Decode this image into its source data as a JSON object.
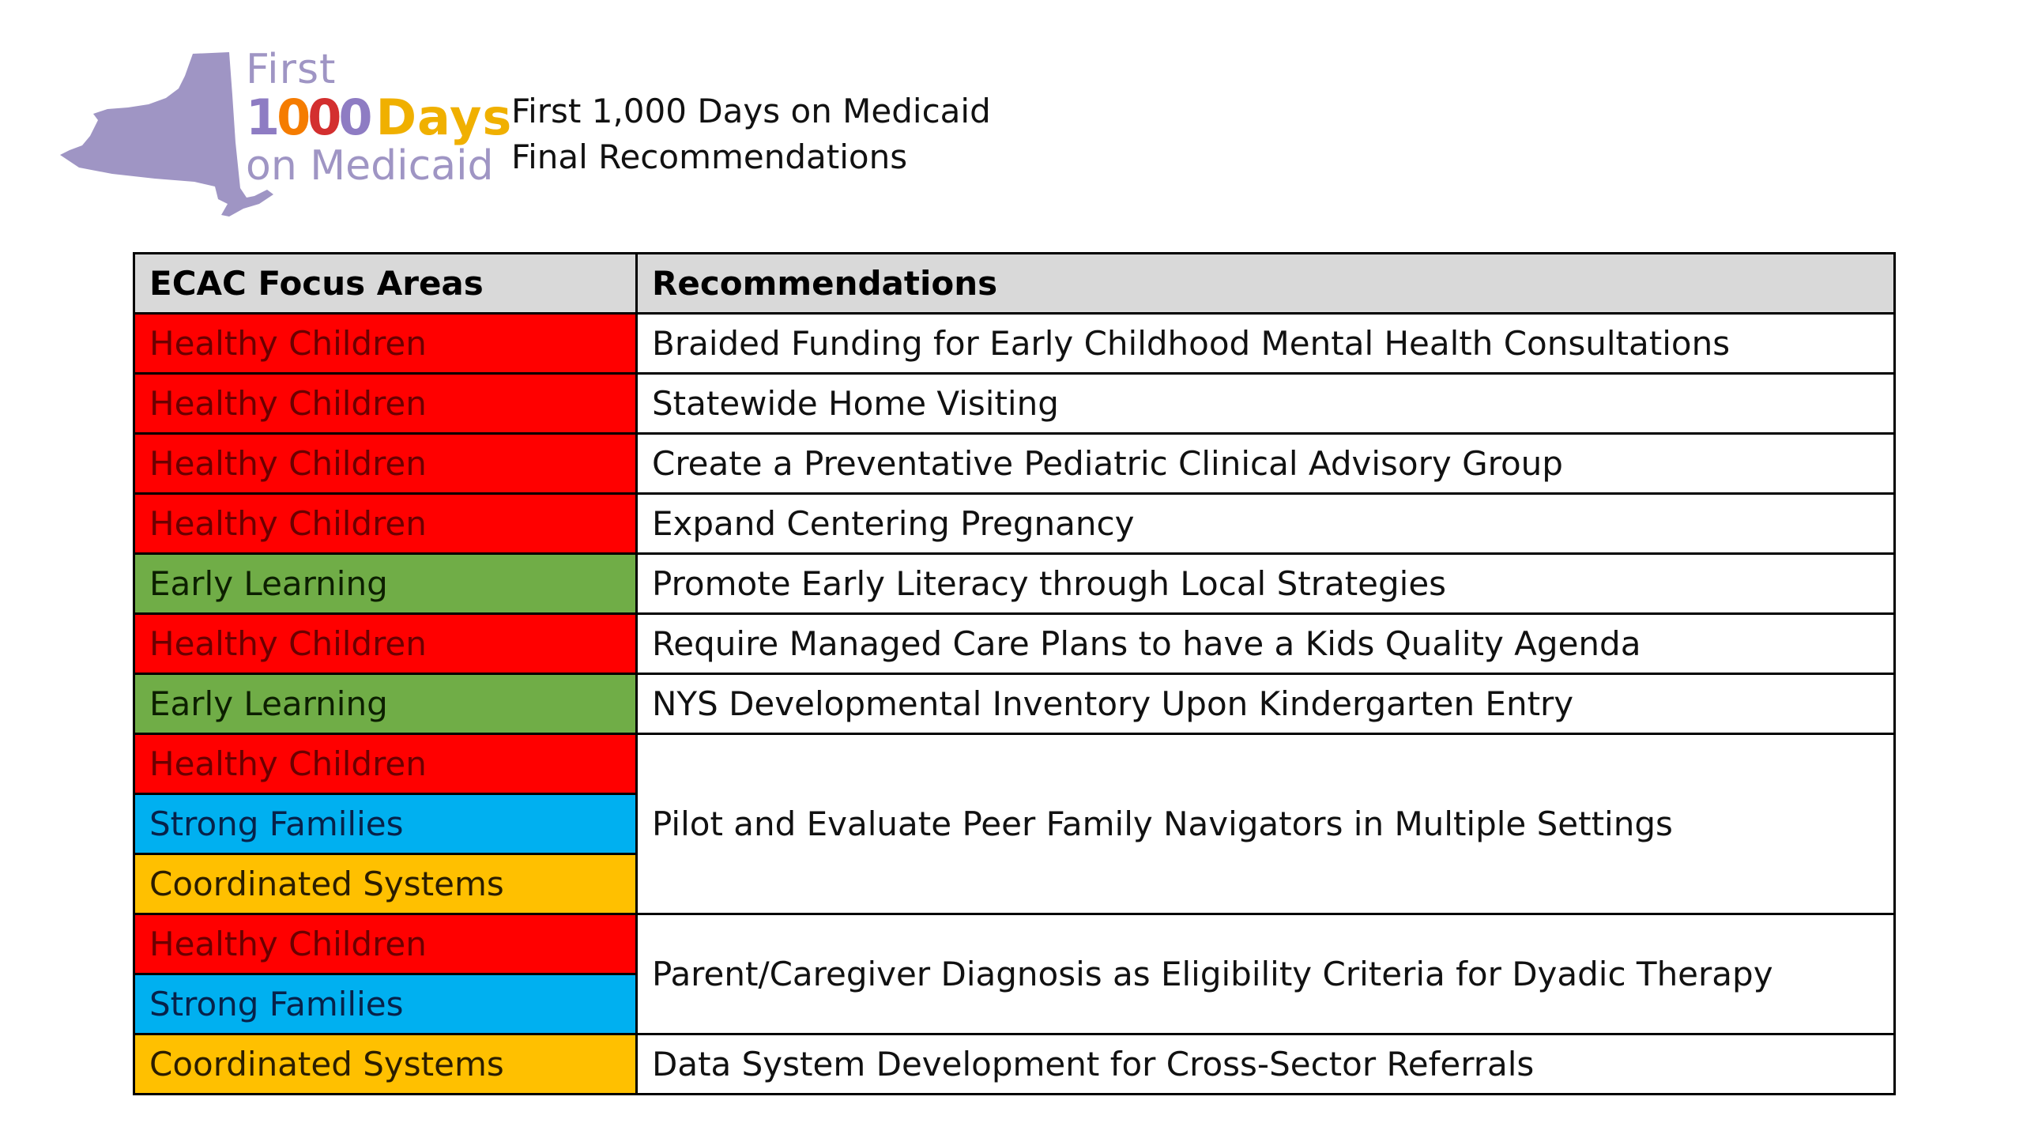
{
  "logo": {
    "line1": "First",
    "digit1": "1",
    "zeros": [
      "0",
      "0",
      "0"
    ],
    "days": "Days",
    "line3": "on Medicaid",
    "colors": {
      "state_shape": "#9f95c4",
      "days": "#f0b000"
    },
    "zero_colors": [
      "#f57c00",
      "#d32f2f",
      "#8e7cc3"
    ]
  },
  "header": {
    "title": "First 1,000 Days on Medicaid",
    "subtitle": "Final Recommendations"
  },
  "table": {
    "columns": [
      "ECAC Focus Areas",
      "Recommendations"
    ],
    "area_colors": {
      "Healthy Children": "#ff0000",
      "Early Learning": "#70ad47",
      "Strong Families": "#00b0f0",
      "Coordinated Systems": "#ffc000"
    },
    "rows": [
      {
        "areas": [
          "Healthy Children"
        ],
        "recommendation": "Braided Funding for Early Childhood Mental Health Consultations"
      },
      {
        "areas": [
          "Healthy Children"
        ],
        "recommendation": "Statewide Home Visiting"
      },
      {
        "areas": [
          "Healthy Children"
        ],
        "recommendation": "Create a Preventative Pediatric Clinical Advisory Group"
      },
      {
        "areas": [
          "Healthy Children"
        ],
        "recommendation": "Expand Centering Pregnancy"
      },
      {
        "areas": [
          "Early Learning"
        ],
        "recommendation": "Promote Early Literacy through Local Strategies"
      },
      {
        "areas": [
          "Healthy Children"
        ],
        "recommendation": "Require Managed Care Plans to have a Kids Quality Agenda"
      },
      {
        "areas": [
          "Early Learning"
        ],
        "recommendation": "NYS Developmental Inventory Upon Kindergarten Entry"
      },
      {
        "areas": [
          "Healthy Children",
          "Strong Families",
          "Coordinated Systems"
        ],
        "recommendation": "Pilot and Evaluate Peer Family Navigators in Multiple Settings"
      },
      {
        "areas": [
          "Healthy Children",
          "Strong Families"
        ],
        "recommendation": "Parent/Caregiver Diagnosis as Eligibility Criteria for Dyadic Therapy"
      },
      {
        "areas": [
          "Coordinated Systems"
        ],
        "recommendation": "Data System Development for Cross-Sector Referrals"
      }
    ]
  }
}
